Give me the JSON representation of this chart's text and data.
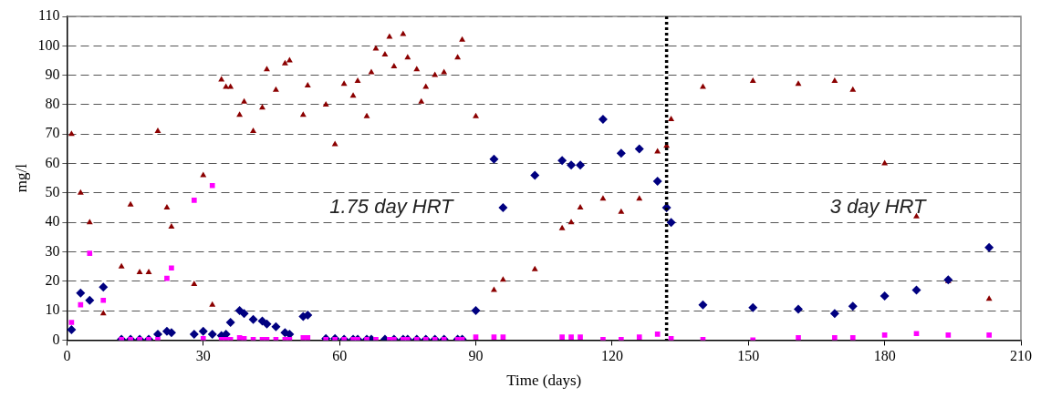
{
  "chart_data": {
    "type": "scatter",
    "xlabel": "Time (days)",
    "ylabel": "mg/l",
    "xlim": [
      0,
      210
    ],
    "xticks": [
      0,
      30,
      60,
      90,
      120,
      150,
      180,
      210
    ],
    "ylim": [
      0,
      110
    ],
    "yticks": [
      0,
      10,
      20,
      30,
      40,
      50,
      60,
      70,
      80,
      90,
      100,
      110
    ],
    "grid": "y",
    "legend": false,
    "annotations": [
      "1.75 day HRT",
      "3 day HRT"
    ],
    "ref_lines": [
      {
        "axis": "x",
        "value": 132,
        "line_style": "dotted",
        "color": "#000000"
      }
    ],
    "series": [
      {
        "color": "#8b0000",
        "marker": "triangle",
        "x": [
          1,
          3,
          5,
          8,
          12,
          14,
          16,
          18,
          20,
          22,
          23,
          28,
          30,
          32,
          34,
          35,
          36,
          38,
          39,
          41,
          43,
          44,
          46,
          48,
          49,
          52,
          53,
          57,
          59,
          61,
          63,
          64,
          66,
          67,
          68,
          70,
          71,
          72,
          74,
          75,
          77,
          78,
          79,
          81,
          83,
          86,
          87,
          90,
          94,
          96,
          103,
          109,
          111,
          113,
          118,
          122,
          126,
          130,
          132,
          133,
          140,
          151,
          161,
          169,
          173,
          180,
          187,
          194,
          203
        ],
        "values": [
          70,
          50,
          40,
          9,
          25,
          46,
          23,
          23,
          71,
          45,
          38.5,
          19,
          56,
          12,
          88.5,
          86,
          86,
          76.5,
          81,
          71,
          79,
          92,
          85,
          94,
          95,
          76.5,
          86.5,
          80,
          66.5,
          87,
          83,
          88,
          76,
          91,
          99,
          97,
          103,
          93,
          104,
          96,
          92,
          81,
          86,
          90,
          91,
          96,
          102,
          76,
          17,
          20.5,
          24,
          38,
          40,
          45,
          48,
          43.5,
          48,
          64,
          66,
          75,
          86,
          88,
          87,
          88,
          85,
          60,
          42,
          20,
          14
        ]
      },
      {
        "color": "#000080",
        "marker": "diamond",
        "x": [
          1,
          3,
          5,
          8,
          12,
          14,
          16,
          18,
          20,
          22,
          23,
          28,
          30,
          32,
          34,
          35,
          36,
          38,
          39,
          41,
          43,
          44,
          46,
          48,
          49,
          52,
          53,
          57,
          59,
          61,
          63,
          64,
          66,
          67,
          70,
          72,
          74,
          75,
          77,
          79,
          81,
          83,
          86,
          87,
          90,
          94,
          96,
          103,
          109,
          111,
          113,
          118,
          122,
          126,
          130,
          132,
          133,
          140,
          151,
          161,
          169,
          173,
          180,
          187,
          194,
          203
        ],
        "values": [
          3.5,
          16,
          13.5,
          18,
          0.3,
          0.3,
          0.3,
          0.3,
          2,
          3,
          2.5,
          2,
          3,
          2,
          1.5,
          2,
          6,
          10,
          9,
          7,
          6.5,
          5.5,
          4.5,
          2.5,
          2,
          8,
          8.5,
          0.5,
          0.5,
          0.3,
          0.3,
          0.3,
          0.3,
          0.3,
          0.3,
          0.3,
          0.3,
          0.3,
          0.3,
          0.3,
          0.3,
          0.3,
          0.3,
          0.3,
          10,
          61.5,
          45,
          56,
          61,
          59.5,
          59.5,
          75,
          63.5,
          65,
          54,
          45,
          40,
          12,
          11,
          10.5,
          9,
          11.5,
          15,
          17,
          20.5,
          31.5
        ]
      },
      {
        "color": "#ff00ff",
        "marker": "square",
        "x": [
          1,
          3,
          5,
          8,
          12,
          14,
          16,
          18,
          20,
          22,
          23,
          28,
          30,
          32,
          34,
          35,
          36,
          38,
          39,
          41,
          43,
          44,
          46,
          48,
          49,
          52,
          53,
          57,
          59,
          61,
          63,
          64,
          66,
          68,
          71,
          72,
          74,
          75,
          77,
          79,
          81,
          83,
          86,
          87,
          90,
          94,
          96,
          109,
          111,
          113,
          118,
          122,
          126,
          130,
          133,
          140,
          151,
          161,
          169,
          173,
          180,
          187,
          194,
          203
        ],
        "values": [
          6,
          12,
          29.5,
          13.5,
          0.2,
          0.2,
          0.2,
          0.2,
          0.2,
          21,
          24.5,
          47.5,
          0.5,
          52.5,
          0.2,
          0.2,
          0.2,
          0.8,
          0.5,
          0.2,
          0.2,
          0.2,
          0.2,
          0.2,
          0.2,
          0.8,
          0.8,
          0.2,
          0.2,
          0.2,
          0.2,
          0.2,
          0.2,
          0.2,
          0.2,
          0.2,
          0.2,
          0.2,
          0.2,
          0.2,
          0.2,
          0.2,
          0.2,
          0.2,
          1,
          1,
          1,
          1,
          1,
          1,
          0.2,
          0.2,
          1,
          2,
          0.5,
          0.2,
          0,
          0.8,
          0.8,
          0.8,
          1.7,
          2.2,
          1.7,
          1.7
        ]
      }
    ]
  }
}
